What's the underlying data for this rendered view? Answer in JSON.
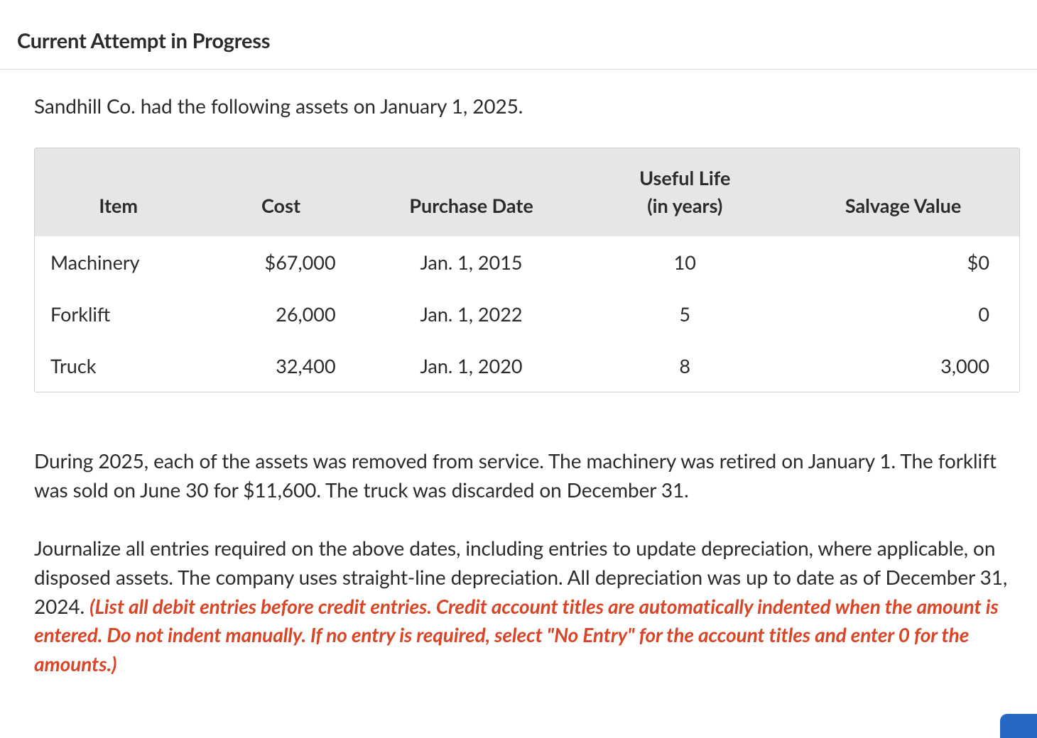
{
  "heading": "Current Attempt in Progress",
  "intro": "Sandhill Co. had the following assets on January 1, 2025.",
  "table": {
    "columns": [
      "Item",
      "Cost",
      "Purchase Date",
      "Useful Life\n(in years)",
      "Salvage Value"
    ],
    "rows": [
      {
        "item": "Machinery",
        "cost": "$67,000",
        "purchase_date": "Jan. 1, 2015",
        "useful_life": "10",
        "salvage": "$0"
      },
      {
        "item": "Forklift",
        "cost": "26,000",
        "purchase_date": "Jan. 1, 2022",
        "useful_life": "5",
        "salvage": "0"
      },
      {
        "item": "Truck",
        "cost": "32,400",
        "purchase_date": "Jan. 1, 2020",
        "useful_life": "8",
        "salvage": "3,000"
      }
    ],
    "header_bg": "#e6e6e6",
    "border_color": "#d0d0d0",
    "text_color": "#2b2b2b",
    "fontsize": 27,
    "col_align": [
      "left",
      "right",
      "center",
      "center",
      "right"
    ]
  },
  "paragraph1": "During 2025, each of the assets was removed from service. The machinery was retired on January 1. The forklift was sold on June 30 for $11,600. The truck was discarded on December 31.",
  "paragraph2_lead": "Journalize all entries required on the above dates, including entries to update depreciation, where applicable, on disposed assets. The company uses straight-line depreciation. All depreciation was up to date as of December 31, 2024. ",
  "paragraph2_hint": "(List all debit entries before credit entries. Credit account titles are automatically indented when the amount is entered. Do not indent manually. If no entry is required, select \"No Entry\" for the account titles and enter 0 for the amounts.)",
  "colors": {
    "hint": "#d94527",
    "text": "#2b2b2b",
    "divider": "#dcdcdc",
    "blue_tab": "#2569c5"
  },
  "typography": {
    "heading_size": 29,
    "body_size": 28,
    "font_family": "Lato, Helvetica Neue, Helvetica, Arial, sans-serif"
  }
}
